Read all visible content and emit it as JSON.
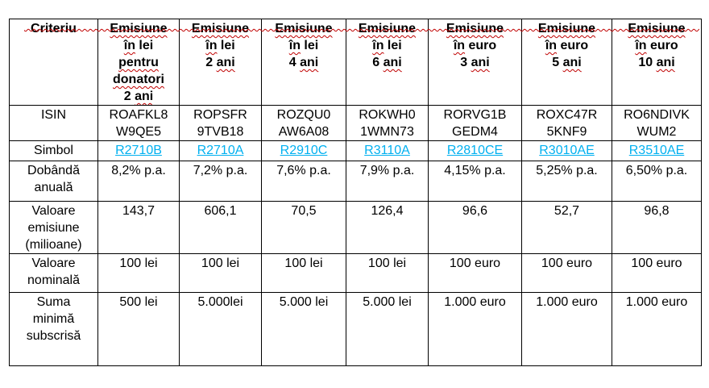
{
  "colors": {
    "link": "#00b0f0",
    "squiggle": "#c00000",
    "border": "#000000",
    "text": "#000000",
    "background": "#ffffff"
  },
  "artifacts": {
    "top_squiggle_fragment": true
  },
  "table": {
    "header": {
      "criteria_label": "Criteriu",
      "columns": [
        {
          "id": "lei-donatori-2ani",
          "lines": [
            [
              {
                "t": "Emisiune",
                "sp": true
              }
            ],
            [
              {
                "t": "în",
                "sp": true
              },
              {
                "t": " lei"
              }
            ],
            [
              {
                "t": "pentru",
                "sp": true
              }
            ],
            [
              {
                "t": "donatori",
                "sp": true
              }
            ],
            [
              {
                "t": "2 "
              },
              {
                "t": "ani",
                "sp": true
              }
            ]
          ]
        },
        {
          "id": "lei-2ani",
          "lines": [
            [
              {
                "t": "Emisiune",
                "sp": true
              }
            ],
            [
              {
                "t": "în",
                "sp": true
              },
              {
                "t": " lei"
              }
            ],
            [
              {
                "t": "2 "
              },
              {
                "t": "ani",
                "sp": true
              }
            ]
          ]
        },
        {
          "id": "lei-4ani",
          "lines": [
            [
              {
                "t": "Emisiune",
                "sp": true
              }
            ],
            [
              {
                "t": "în",
                "sp": true
              },
              {
                "t": " lei"
              }
            ],
            [
              {
                "t": "4 "
              },
              {
                "t": "ani",
                "sp": true
              }
            ]
          ]
        },
        {
          "id": "lei-6ani",
          "lines": [
            [
              {
                "t": "Emisiune",
                "sp": true
              }
            ],
            [
              {
                "t": "în",
                "sp": true
              },
              {
                "t": " lei"
              }
            ],
            [
              {
                "t": "6 "
              },
              {
                "t": "ani",
                "sp": true
              }
            ]
          ]
        },
        {
          "id": "euro-3ani",
          "lines": [
            [
              {
                "t": "Emisiune",
                "sp": true
              }
            ],
            [
              {
                "t": "în",
                "sp": true
              },
              {
                "t": " euro"
              }
            ],
            [
              {
                "t": "3 "
              },
              {
                "t": "ani",
                "sp": true
              }
            ]
          ]
        },
        {
          "id": "euro-5ani",
          "lines": [
            [
              {
                "t": "Emisiune",
                "sp": true
              }
            ],
            [
              {
                "t": "în",
                "sp": true
              },
              {
                "t": " euro"
              }
            ],
            [
              {
                "t": "5 "
              },
              {
                "t": "ani",
                "sp": true
              }
            ]
          ]
        },
        {
          "id": "euro-10ani",
          "lines": [
            [
              {
                "t": "Emisiune",
                "sp": true
              }
            ],
            [
              {
                "t": "în",
                "sp": true
              },
              {
                "t": " euro"
              }
            ],
            [
              {
                "t": "10 "
              },
              {
                "t": "ani",
                "sp": true
              }
            ]
          ]
        }
      ]
    },
    "rows": [
      {
        "id": "isin",
        "label": "ISIN",
        "type": "text",
        "cells": [
          "ROAFKL8\nW9QE5",
          "ROPSFR\n9TVB18",
          "ROZQU0\nAW6A08",
          "ROKWH0\n1WMN73",
          "RORVG1B\nGEDM4",
          "ROXC47R\n5KNF9",
          "RO6NDIVK\nWUM2"
        ],
        "aligns": [
          "center",
          "center",
          "center",
          "center",
          "center",
          "center",
          "left"
        ]
      },
      {
        "id": "simbol",
        "label": "Simbol",
        "type": "link",
        "cells": [
          "R2710B",
          "R2710A",
          "R2910C",
          "R3110A",
          "R2810CE",
          "R3010AE",
          "R3510AE"
        ]
      },
      {
        "id": "dobanda-anuala",
        "label": "Dobândă\nanuală",
        "type": "text",
        "cells": [
          "8,2% p.a.",
          "7,2% p.a.",
          "7,6% p.a.",
          "7,9% p.a.",
          "4,15% p.a.",
          "5,25% p.a.",
          "6,50% p.a."
        ]
      },
      {
        "id": "valoare-emisiune",
        "label": "Valoare\nemisiune\n(milioane)",
        "type": "text",
        "cells": [
          "143,7",
          "606,1",
          "70,5",
          "126,4",
          "96,6",
          "52,7",
          "96,8"
        ]
      },
      {
        "id": "valoare-nominala",
        "label": "Valoare\nnominală",
        "type": "text",
        "cells": [
          "100 lei",
          "100 lei",
          "100 lei",
          "100 lei",
          "100 euro",
          "100 euro",
          "100 euro"
        ]
      },
      {
        "id": "suma-minima-subscrisa",
        "label": "Suma\nminimă\nsubscrisă",
        "type": "text",
        "cells": [
          "500 lei",
          "5.000lei",
          "5.000 lei",
          "5.000 lei",
          "1.000 euro",
          "1.000 euro",
          "1.000 euro"
        ]
      }
    ]
  }
}
